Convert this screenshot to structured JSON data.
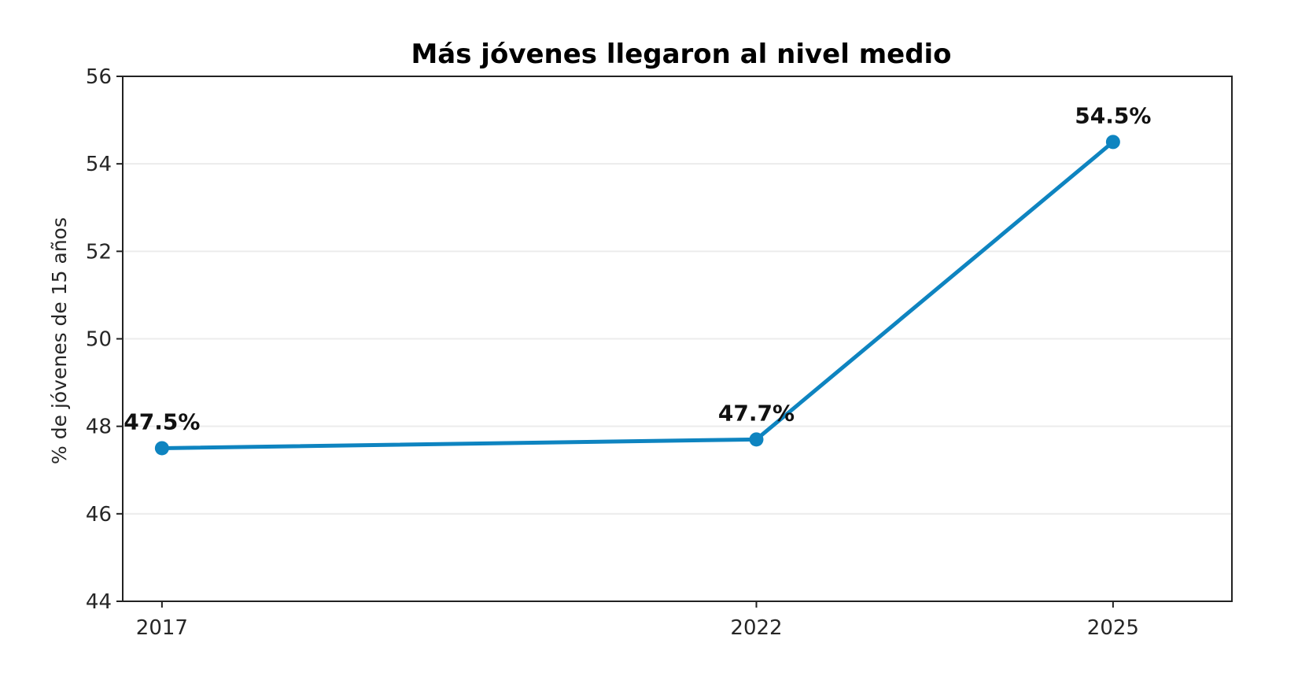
{
  "chart_data": {
    "type": "line",
    "title": "Más jóvenes llegaron al nivel medio",
    "xlabel": "",
    "ylabel": "% de jóvenes de 15 años",
    "x": [
      "2017",
      "2022",
      "2025"
    ],
    "x_numeric": [
      2017,
      2022,
      2025
    ],
    "series": [
      {
        "values": [
          47.5,
          47.7,
          54.5
        ],
        "color": "#0e84c0",
        "marker": "circle"
      }
    ],
    "data_labels": [
      "47.5%",
      "47.7%",
      "54.5%"
    ],
    "ylim": [
      44,
      56
    ],
    "yticks": [
      "44",
      "46",
      "48",
      "50",
      "52",
      "54",
      "56"
    ],
    "ytick_values": [
      44,
      46,
      48,
      50,
      52,
      54,
      56
    ],
    "xlim": [
      2016.67,
      2026.0
    ],
    "grid": "horizontal",
    "legend": "none"
  }
}
